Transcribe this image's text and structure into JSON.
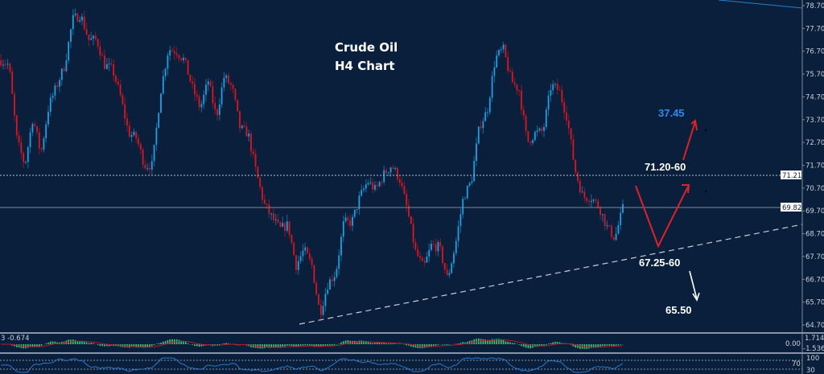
{
  "title": {
    "line1": "Crude Oil",
    "line2": "H4  Chart"
  },
  "colors": {
    "background": "#0a1f3b",
    "bull": "#1ea0e6",
    "bear": "#e0141e",
    "annotation_arrow": "#e0202a",
    "target_blue": "#2a8cf0"
  },
  "chart_data": {
    "type": "candlestick",
    "instrument": "Crude Oil",
    "timeframe": "H4",
    "ylim": [
      64.4,
      78.9
    ],
    "y_ticks": [
      "78.70",
      "77.70",
      "76.70",
      "75.70",
      "74.70",
      "73.70",
      "72.70",
      "71.70",
      "70.70",
      "69.70",
      "68.70",
      "67.70",
      "66.70",
      "65.70",
      "64.70"
    ],
    "price_path_approx": [
      76.3,
      76.1,
      72.8,
      71.7,
      73.8,
      72.2,
      74.3,
      75.2,
      76.1,
      78.1,
      78.3,
      77.2,
      77.2,
      76.1,
      75.9,
      74.7,
      73.1,
      72.9,
      71.7,
      71.7,
      74.9,
      76.8,
      76.7,
      76.3,
      75.1,
      74.2,
      75.4,
      73.8,
      75.6,
      75.1,
      73.3,
      73.1,
      71.4,
      70.0,
      69.4,
      68.9,
      69.1,
      67.3,
      68.0,
      67.3,
      65.2,
      66.5,
      67.0,
      69.2,
      69.2,
      70.3,
      71.0,
      70.6,
      71.3,
      71.7,
      71.1,
      69.7,
      67.9,
      67.2,
      68.2,
      68.1,
      66.7,
      68.2,
      70.3,
      71.0,
      73.4,
      74.1,
      76.4,
      76.8,
      75.4,
      75.0,
      72.7,
      73.1,
      73.2,
      75.2,
      75.0,
      73.8,
      71.5,
      70.3,
      70.3,
      69.9,
      69.0,
      68.5,
      69.8
    ],
    "last_price": "69.82",
    "horizontal_lines": [
      {
        "price": "71.21",
        "style": "dotted"
      },
      {
        "price": "69.82",
        "style": "solid"
      }
    ],
    "trendline": {
      "style": "dashed",
      "from_price": 64.7,
      "to_price": 69.1
    },
    "annotations": [
      {
        "text": "37.45",
        "color": "blue"
      },
      {
        "text": "71.20-60"
      },
      {
        "text": "67.25-60"
      },
      {
        "text": "65.50"
      }
    ],
    "macd": {
      "label": "3 -0.674",
      "ticks": [
        "1.714",
        "0.00",
        "-1.536"
      ]
    },
    "rsi": {
      "ticks": [
        "100",
        "70",
        "30"
      ]
    }
  }
}
